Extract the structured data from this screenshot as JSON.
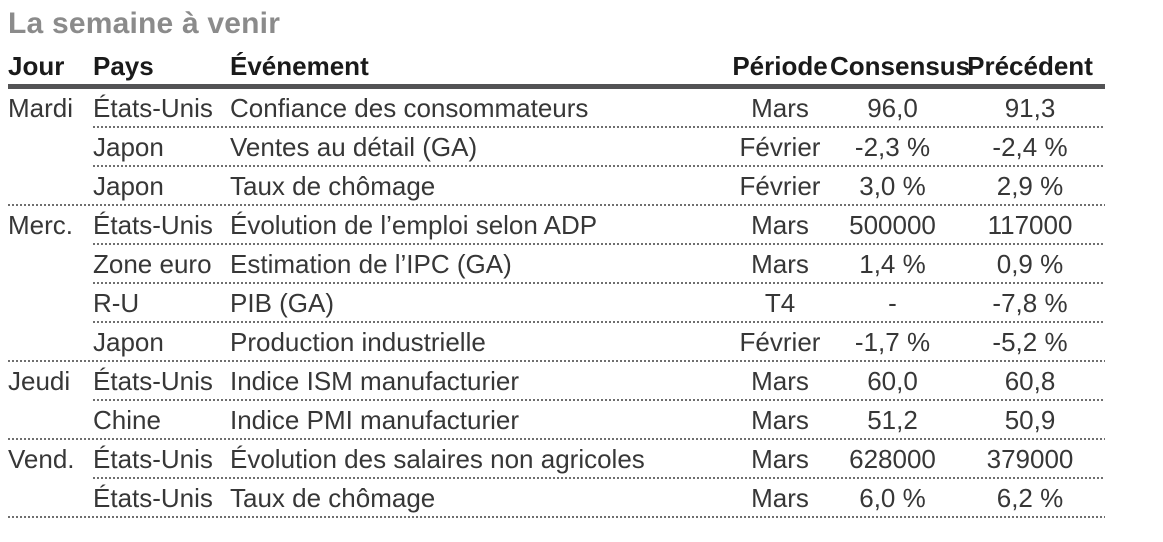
{
  "title": "La semaine à venir",
  "colors": {
    "title_text": "#8b8b8b",
    "header_text": "#1a1a1a",
    "body_text": "#373737",
    "header_rule": "#535355",
    "row_divider": "#6f6f6f"
  },
  "table": {
    "columns": [
      "Jour",
      "Pays",
      "Événement",
      "Période",
      "Consensus",
      "Précédent"
    ],
    "rows": [
      {
        "day": "Mardi",
        "country": "États-Unis",
        "event": "Confiance des consommateurs",
        "period": "Mars",
        "consensus": "96,0",
        "previous": "91,3",
        "group_end": false
      },
      {
        "day": "",
        "country": "Japon",
        "event": "Ventes au détail (GA)",
        "period": "Février",
        "consensus": "-2,3 %",
        "previous": "-2,4 %",
        "group_end": false
      },
      {
        "day": "",
        "country": "Japon",
        "event": "Taux de chômage",
        "period": "Février",
        "consensus": "3,0 %",
        "previous": "2,9 %",
        "group_end": true
      },
      {
        "day": "Merc.",
        "country": "États-Unis",
        "event": "Évolution de l’emploi selon ADP",
        "period": "Mars",
        "consensus": "500000",
        "previous": "117000",
        "group_end": false
      },
      {
        "day": "",
        "country": "Zone euro",
        "event": "Estimation de l’IPC (GA)",
        "period": "Mars",
        "consensus": "1,4 %",
        "previous": "0,9 %",
        "group_end": false
      },
      {
        "day": "",
        "country": "R-U",
        "event": "PIB (GA)",
        "period": "T4",
        "consensus": "-",
        "previous": "-7,8 %",
        "group_end": false
      },
      {
        "day": "",
        "country": "Japon",
        "event": "Production industrielle",
        "period": "Février",
        "consensus": "-1,7 %",
        "previous": "-5,2 %",
        "group_end": true
      },
      {
        "day": "Jeudi",
        "country": "États-Unis",
        "event": "Indice ISM manufacturier",
        "period": "Mars",
        "consensus": "60,0",
        "previous": "60,8",
        "group_end": false
      },
      {
        "day": "",
        "country": "Chine",
        "event": "Indice PMI manufacturier",
        "period": "Mars",
        "consensus": "51,2",
        "previous": "50,9",
        "group_end": true
      },
      {
        "day": "Vend.",
        "country": "États-Unis",
        "event": "Évolution des salaires non agricoles",
        "period": "Mars",
        "consensus": "628000",
        "previous": "379000",
        "group_end": false
      },
      {
        "day": "",
        "country": "États-Unis",
        "event": "Taux de chômage",
        "period": "Mars",
        "consensus": "6,0 %",
        "previous": "6,2 %",
        "group_end": true
      }
    ]
  }
}
